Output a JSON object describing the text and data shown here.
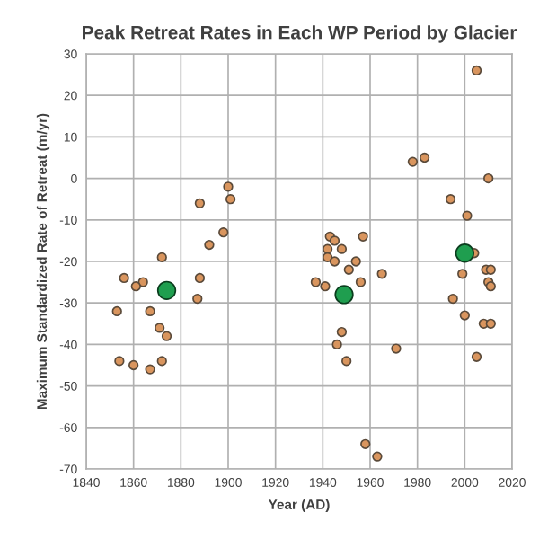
{
  "chart_data": {
    "type": "scatter",
    "title": "Peak Retreat Rates in Each WP Period by Glacier",
    "xlabel": "Year (AD)",
    "ylabel": "Maximum Standardized Rate of Retreat (m/yr)",
    "xlim": [
      1840,
      2020
    ],
    "xticks": [
      1840,
      1860,
      1880,
      1900,
      1920,
      1940,
      1960,
      1980,
      2000,
      2020
    ],
    "ylim": [
      -70,
      30
    ],
    "yticks": [
      -70,
      -60,
      -50,
      -40,
      -30,
      -20,
      -10,
      0,
      10,
      20,
      30
    ],
    "grid": true,
    "marker": "circle",
    "series": [
      {
        "color": "#d9955e",
        "x": [
          1900,
          1888,
          1901,
          1898,
          1892,
          1872,
          1856,
          1864,
          1861,
          1888,
          1887,
          1853,
          1867,
          1871,
          1874,
          1854,
          1860,
          1867,
          1872,
          2005,
          1978,
          1983,
          2010,
          1994,
          2001,
          1943,
          1945,
          1957,
          1942,
          1948,
          1942,
          1945,
          1954,
          1951,
          1965,
          2004,
          1999,
          2009,
          2011,
          1956,
          1937,
          2010,
          1941,
          1948,
          1946,
          1950,
          1971,
          1958,
          1963,
          2011,
          1995,
          2000,
          2008,
          2011,
          2005
        ],
        "values": [
          -2,
          -6,
          -5,
          -13,
          -16,
          -19,
          -24,
          -25,
          -26,
          -24,
          -29,
          -32,
          -32,
          -36,
          -38,
          -44,
          -45,
          -46,
          -44,
          26,
          4,
          5,
          0,
          -5,
          -9,
          -14,
          -15,
          -14,
          -17,
          -17,
          -19,
          -20,
          -20,
          -22,
          -23,
          -18,
          -23,
          -22,
          -22,
          -25,
          -25,
          -25,
          -26,
          -37,
          -40,
          -44,
          -41,
          -64,
          -67,
          -26,
          -29,
          -33,
          -35,
          -35,
          -43
        ]
      },
      {
        "color": "#1f9e4f",
        "x": [
          1874,
          1949,
          2000
        ],
        "values": [
          -27,
          -28,
          -18
        ]
      }
    ]
  }
}
